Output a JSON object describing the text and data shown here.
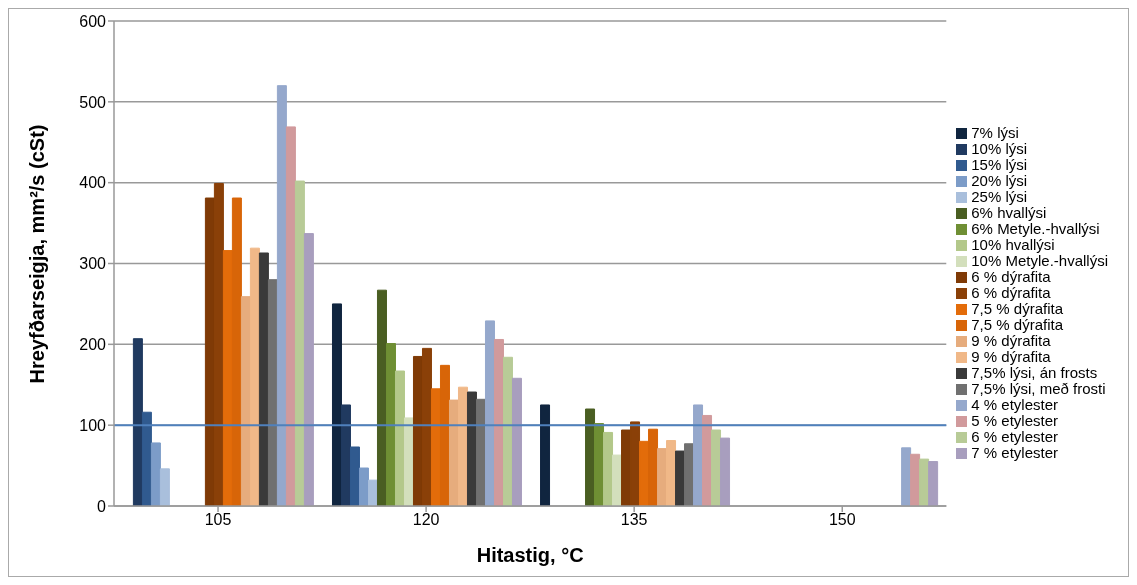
{
  "chart_data": {
    "type": "bar",
    "xlabel": "Hitastig, °C",
    "ylabel": "Hreyfðarseigja, mm²/s (cSt)",
    "categories": [
      "105",
      "120",
      "135",
      "150"
    ],
    "series": [
      {
        "name": "7% lýsi",
        "color": "#10253f",
        "values": [
          null,
          250,
          125,
          null
        ]
      },
      {
        "name": "10% lýsi",
        "color": "#203a60",
        "values": [
          207,
          125,
          null,
          null
        ]
      },
      {
        "name": "15% lýsi",
        "color": "#305a8f",
        "values": [
          116,
          73,
          null,
          null
        ]
      },
      {
        "name": "20% lýsi",
        "color": "#7c9cc8",
        "values": [
          78,
          47,
          null,
          null
        ]
      },
      {
        "name": "25% lýsi",
        "color": "#a9bfdc",
        "values": [
          46,
          32,
          null,
          null
        ]
      },
      {
        "name": "6% hvallýsi",
        "color": "#4a5e22",
        "values": [
          null,
          267,
          120,
          null
        ]
      },
      {
        "name": "6% Metyle.-hvallýsi",
        "color": "#6f8f34",
        "values": [
          null,
          201,
          102,
          null
        ]
      },
      {
        "name": "10% hvallýsi",
        "color": "#b3c88a",
        "values": [
          null,
          167,
          91,
          null
        ]
      },
      {
        "name": "10% Metyle.-hvallýsi",
        "color": "#d3dfbc",
        "values": [
          null,
          109,
          63,
          null
        ]
      },
      {
        "name": "6 % dýrafita",
        "color": "#7f3a06",
        "values": [
          381,
          185,
          94,
          null
        ]
      },
      {
        "name": "6 % dýrafita",
        "color": "#8a4008",
        "values": [
          399,
          195,
          104,
          null
        ]
      },
      {
        "name": "7,5 % dýrafita",
        "color": "#e36c0a",
        "values": [
          316,
          145,
          80,
          null
        ]
      },
      {
        "name": "7,5 % dýrafita",
        "color": "#d86508",
        "values": [
          381,
          174,
          95,
          null
        ]
      },
      {
        "name": "9 % dýrafita",
        "color": "#e6ac7d",
        "values": [
          259,
          131,
          71,
          null
        ]
      },
      {
        "name": "9 % dýrafita",
        "color": "#f0b888",
        "values": [
          319,
          147,
          81,
          null
        ]
      },
      {
        "name": "7,5% lýsi, án frosts",
        "color": "#3a3a3a",
        "values": [
          313,
          141,
          68,
          null
        ]
      },
      {
        "name": "7,5% lýsi, með frosti",
        "color": "#707070",
        "values": [
          280,
          132,
          77,
          null
        ]
      },
      {
        "name": "4 % etylester",
        "color": "#95a8cc",
        "values": [
          520,
          229,
          125,
          72
        ]
      },
      {
        "name": "5 % etylester",
        "color": "#d19a9c",
        "values": [
          469,
          206,
          112,
          64
        ]
      },
      {
        "name": "6 % etylester",
        "color": "#b8cb97",
        "values": [
          402,
          184,
          94,
          58
        ]
      },
      {
        "name": "7 % etylester",
        "color": "#a89ebe",
        "values": [
          337,
          158,
          84,
          55
        ]
      }
    ],
    "ylim": [
      0,
      600
    ],
    "yticks": [
      0,
      100,
      200,
      300,
      400,
      500,
      600
    ],
    "grid": "y",
    "legend": "right",
    "ref_lines": [
      {
        "axis": "y",
        "value": 100,
        "color": "#4f81bd"
      }
    ]
  }
}
